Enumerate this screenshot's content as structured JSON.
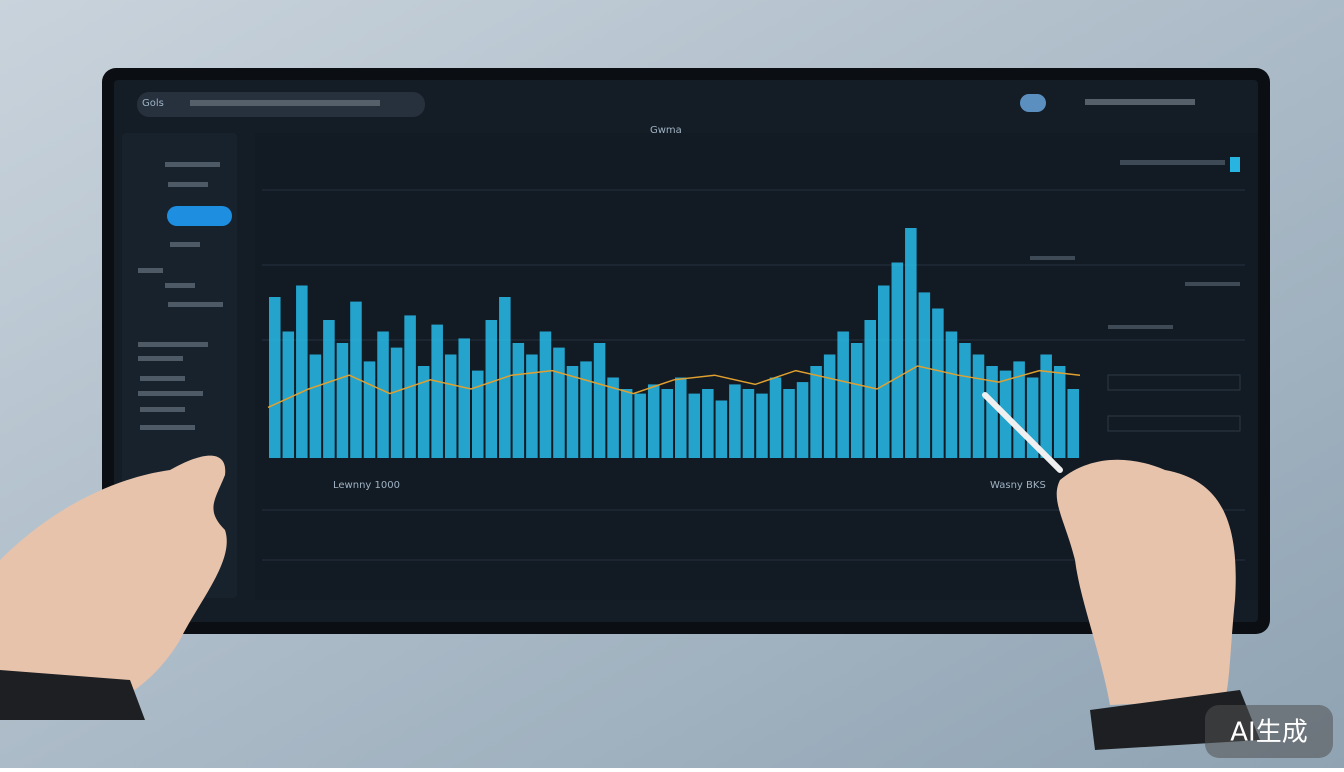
{
  "watermark": "AI生成",
  "screen": {
    "menu": "Gols",
    "chart_title": "Gwma",
    "footer_left": "Lewnny 1000",
    "footer_right": "Wasny BKS"
  },
  "chart_data": {
    "type": "bar",
    "values": [
      70,
      55,
      75,
      45,
      60,
      50,
      68,
      42,
      55,
      48,
      62,
      40,
      58,
      45,
      52,
      38,
      60,
      70,
      50,
      45,
      55,
      48,
      40,
      42,
      50,
      35,
      30,
      28,
      32,
      30,
      35,
      28,
      30,
      25,
      32,
      30,
      28,
      35,
      30,
      33,
      40,
      45,
      55,
      50,
      60,
      75,
      85,
      100,
      72,
      65,
      55,
      50,
      45,
      40,
      38,
      42,
      35,
      45,
      40,
      30
    ],
    "color": "#27b4e0",
    "line": {
      "color": "#e0a030",
      "values": [
        22,
        30,
        36,
        28,
        34,
        30,
        36,
        38,
        33,
        28,
        34,
        36,
        32,
        38,
        34,
        30,
        40,
        36,
        33,
        38,
        36
      ]
    }
  }
}
